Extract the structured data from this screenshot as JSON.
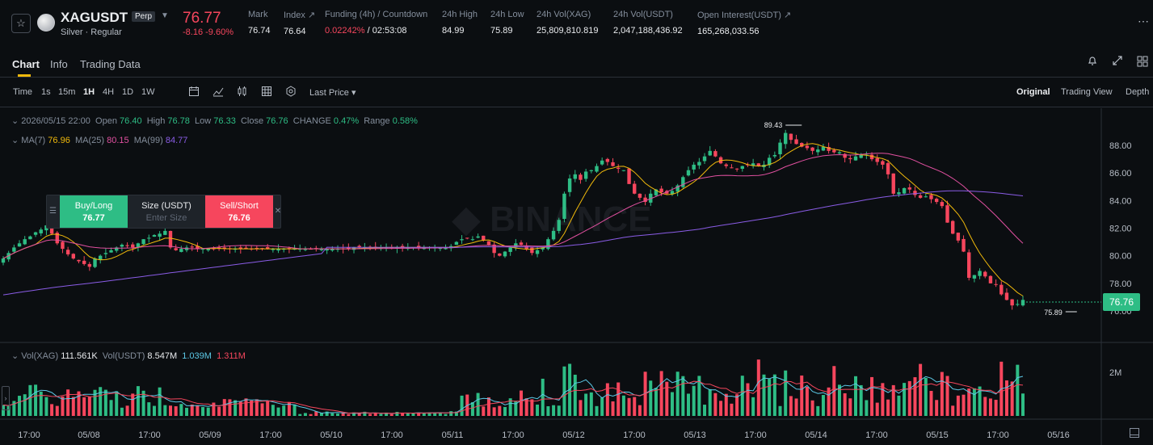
{
  "header": {
    "symbol": "XAGUSDT",
    "badge": "Perp",
    "subtitle": "Silver · Regular",
    "price": "76.77",
    "change": "-8.16 -9.60%",
    "stats": [
      {
        "label": "Mark",
        "value": "76.74"
      },
      {
        "label": "Index ↗",
        "value": "76.64"
      },
      {
        "label": "Funding (4h) / Countdown",
        "value_red": "0.02242%",
        "value_rest": " / 02:53:08"
      },
      {
        "label": "24h High",
        "value": "84.99"
      },
      {
        "label": "24h Low",
        "value": "75.89"
      },
      {
        "label": "24h Vol(XAG)",
        "value": "25,809,810.819"
      },
      {
        "label": "24h Vol(USDT)",
        "value": "2,047,188,436.92"
      },
      {
        "label": "Open Interest(USDT) ↗",
        "value": "165,268,033.56"
      }
    ]
  },
  "tabs": {
    "chart": "Chart",
    "info": "Info",
    "trading_data": "Trading Data"
  },
  "toolbar": {
    "time": "Time",
    "1s": "1s",
    "15m": "15m",
    "1h": "1H",
    "4h": "4H",
    "1d": "1D",
    "1w": "1W",
    "price_type": "Last Price ▾",
    "original": "Original",
    "trading_view": "Trading View",
    "depth": "Depth"
  },
  "ohlc": {
    "date": "2026/05/15 22:00",
    "open_label": "Open",
    "open": "76.40",
    "high_label": "High",
    "high": "76.78",
    "low_label": "Low",
    "low": "76.33",
    "close_label": "Close",
    "close": "76.76",
    "change_label": "CHANGE",
    "change": "0.47%",
    "range_label": "Range",
    "range": "0.58%"
  },
  "ma": {
    "ma7_label": "MA(7)",
    "ma7": "76.96",
    "ma25_label": "MA(25)",
    "ma25": "80.15",
    "ma99_label": "MA(99)",
    "ma99": "84.77"
  },
  "trade_panel": {
    "buy_label": "Buy/Long",
    "buy_price": "76.77",
    "size_label": "Size (USDT)",
    "size_placeholder": "Enter Size",
    "sell_label": "Sell/Short",
    "sell_price": "76.76"
  },
  "volume": {
    "label": "Vol(XAG)",
    "xag": "111.561K",
    "usdt_label": "Vol(USDT)",
    "usdt": "8.547M",
    "ma1": "1.039M",
    "ma2": "1.311M"
  },
  "current_price_label": "76.76",
  "colors": {
    "up": "#2ebd85",
    "down": "#f6465d",
    "ma7": "#f0b90b",
    "ma25": "#e150a0",
    "ma99": "#8a5ce6",
    "vol_ma": "#5cc8e6"
  },
  "chart_data": {
    "type": "candlestick",
    "y_ticks": [
      "88.00",
      "86.00",
      "84.00",
      "82.00",
      "80.00",
      "78.00",
      "76.00"
    ],
    "ylim": [
      75.0,
      89.8
    ],
    "vol_tick": "2M",
    "x_ticks": [
      "17:00",
      "05/08",
      "17:00",
      "05/09",
      "17:00",
      "05/10",
      "17:00",
      "05/11",
      "17:00",
      "05/12",
      "17:00",
      "05/13",
      "17:00",
      "05/14",
      "17:00",
      "05/15",
      "17:00",
      "05/16"
    ],
    "high_marker": "89.43",
    "low_marker": "75.89",
    "closes": [
      79.8,
      80.2,
      80.6,
      80.9,
      81.2,
      81.4,
      81.7,
      81.9,
      82.2,
      81.6,
      80.9,
      80.5,
      80.1,
      79.8,
      79.6,
      79.4,
      79.2,
      79.8,
      80.0,
      80.2,
      80.4,
      80.6,
      80.8,
      80.7,
      80.6,
      80.9,
      81.2,
      81.3,
      81.5,
      81.6,
      81.8,
      80.6,
      80.4,
      80.5,
      80.6,
      80.6,
      80.5,
      80.5,
      80.5,
      80.5,
      80.5,
      80.5,
      80.5,
      80.5,
      80.5,
      80.5,
      80.5,
      80.5,
      80.5,
      80.5,
      80.5,
      80.5,
      80.5,
      80.5,
      80.5,
      80.5,
      80.5,
      80.5,
      80.5,
      80.5,
      80.5,
      80.5,
      80.5,
      80.5,
      80.5,
      80.6,
      80.6,
      80.6,
      80.6,
      80.6,
      80.6,
      80.6,
      80.6,
      80.6,
      80.6,
      80.6,
      80.6,
      80.6,
      80.6,
      80.6,
      80.6,
      80.6,
      80.6,
      80.7,
      81.0,
      81.2,
      81.3,
      81.2,
      81.4,
      81.1,
      80.8,
      80.2,
      80.0,
      80.3,
      80.6,
      80.9,
      80.8,
      80.5,
      80.2,
      80.4,
      80.6,
      81.2,
      81.8,
      82.6,
      84.5,
      85.6,
      85.9,
      85.5,
      86.1,
      86.2,
      86.5,
      86.9,
      86.8,
      86.5,
      86.3,
      86.2,
      85.2,
      84.5,
      84.2,
      83.9,
      84.5,
      84.8,
      84.6,
      84.5,
      84.7,
      85.1,
      85.7,
      86.2,
      86.6,
      86.8,
      87.2,
      87.6,
      87.2,
      86.7,
      86.5,
      86.4,
      86.3,
      86.5,
      86.6,
      86.7,
      86.5,
      86.6,
      87.1,
      87.3,
      88.2,
      88.9,
      88.4,
      88.1,
      87.9,
      87.8,
      87.6,
      87.7,
      87.9,
      87.6,
      87.5,
      87.5,
      87.1,
      87.0,
      87.2,
      87.3,
      87.4,
      87.0,
      86.8,
      86.6,
      85.9,
      84.5,
      84.6,
      84.9,
      84.8,
      84.4,
      84.2,
      84.3,
      84.1,
      83.9,
      83.6,
      82.4,
      81.6,
      81.1,
      80.3,
      78.4,
      78.6,
      78.9,
      78.5,
      78.0,
      77.9,
      77.2,
      76.8,
      76.4,
      76.5,
      76.8
    ]
  }
}
